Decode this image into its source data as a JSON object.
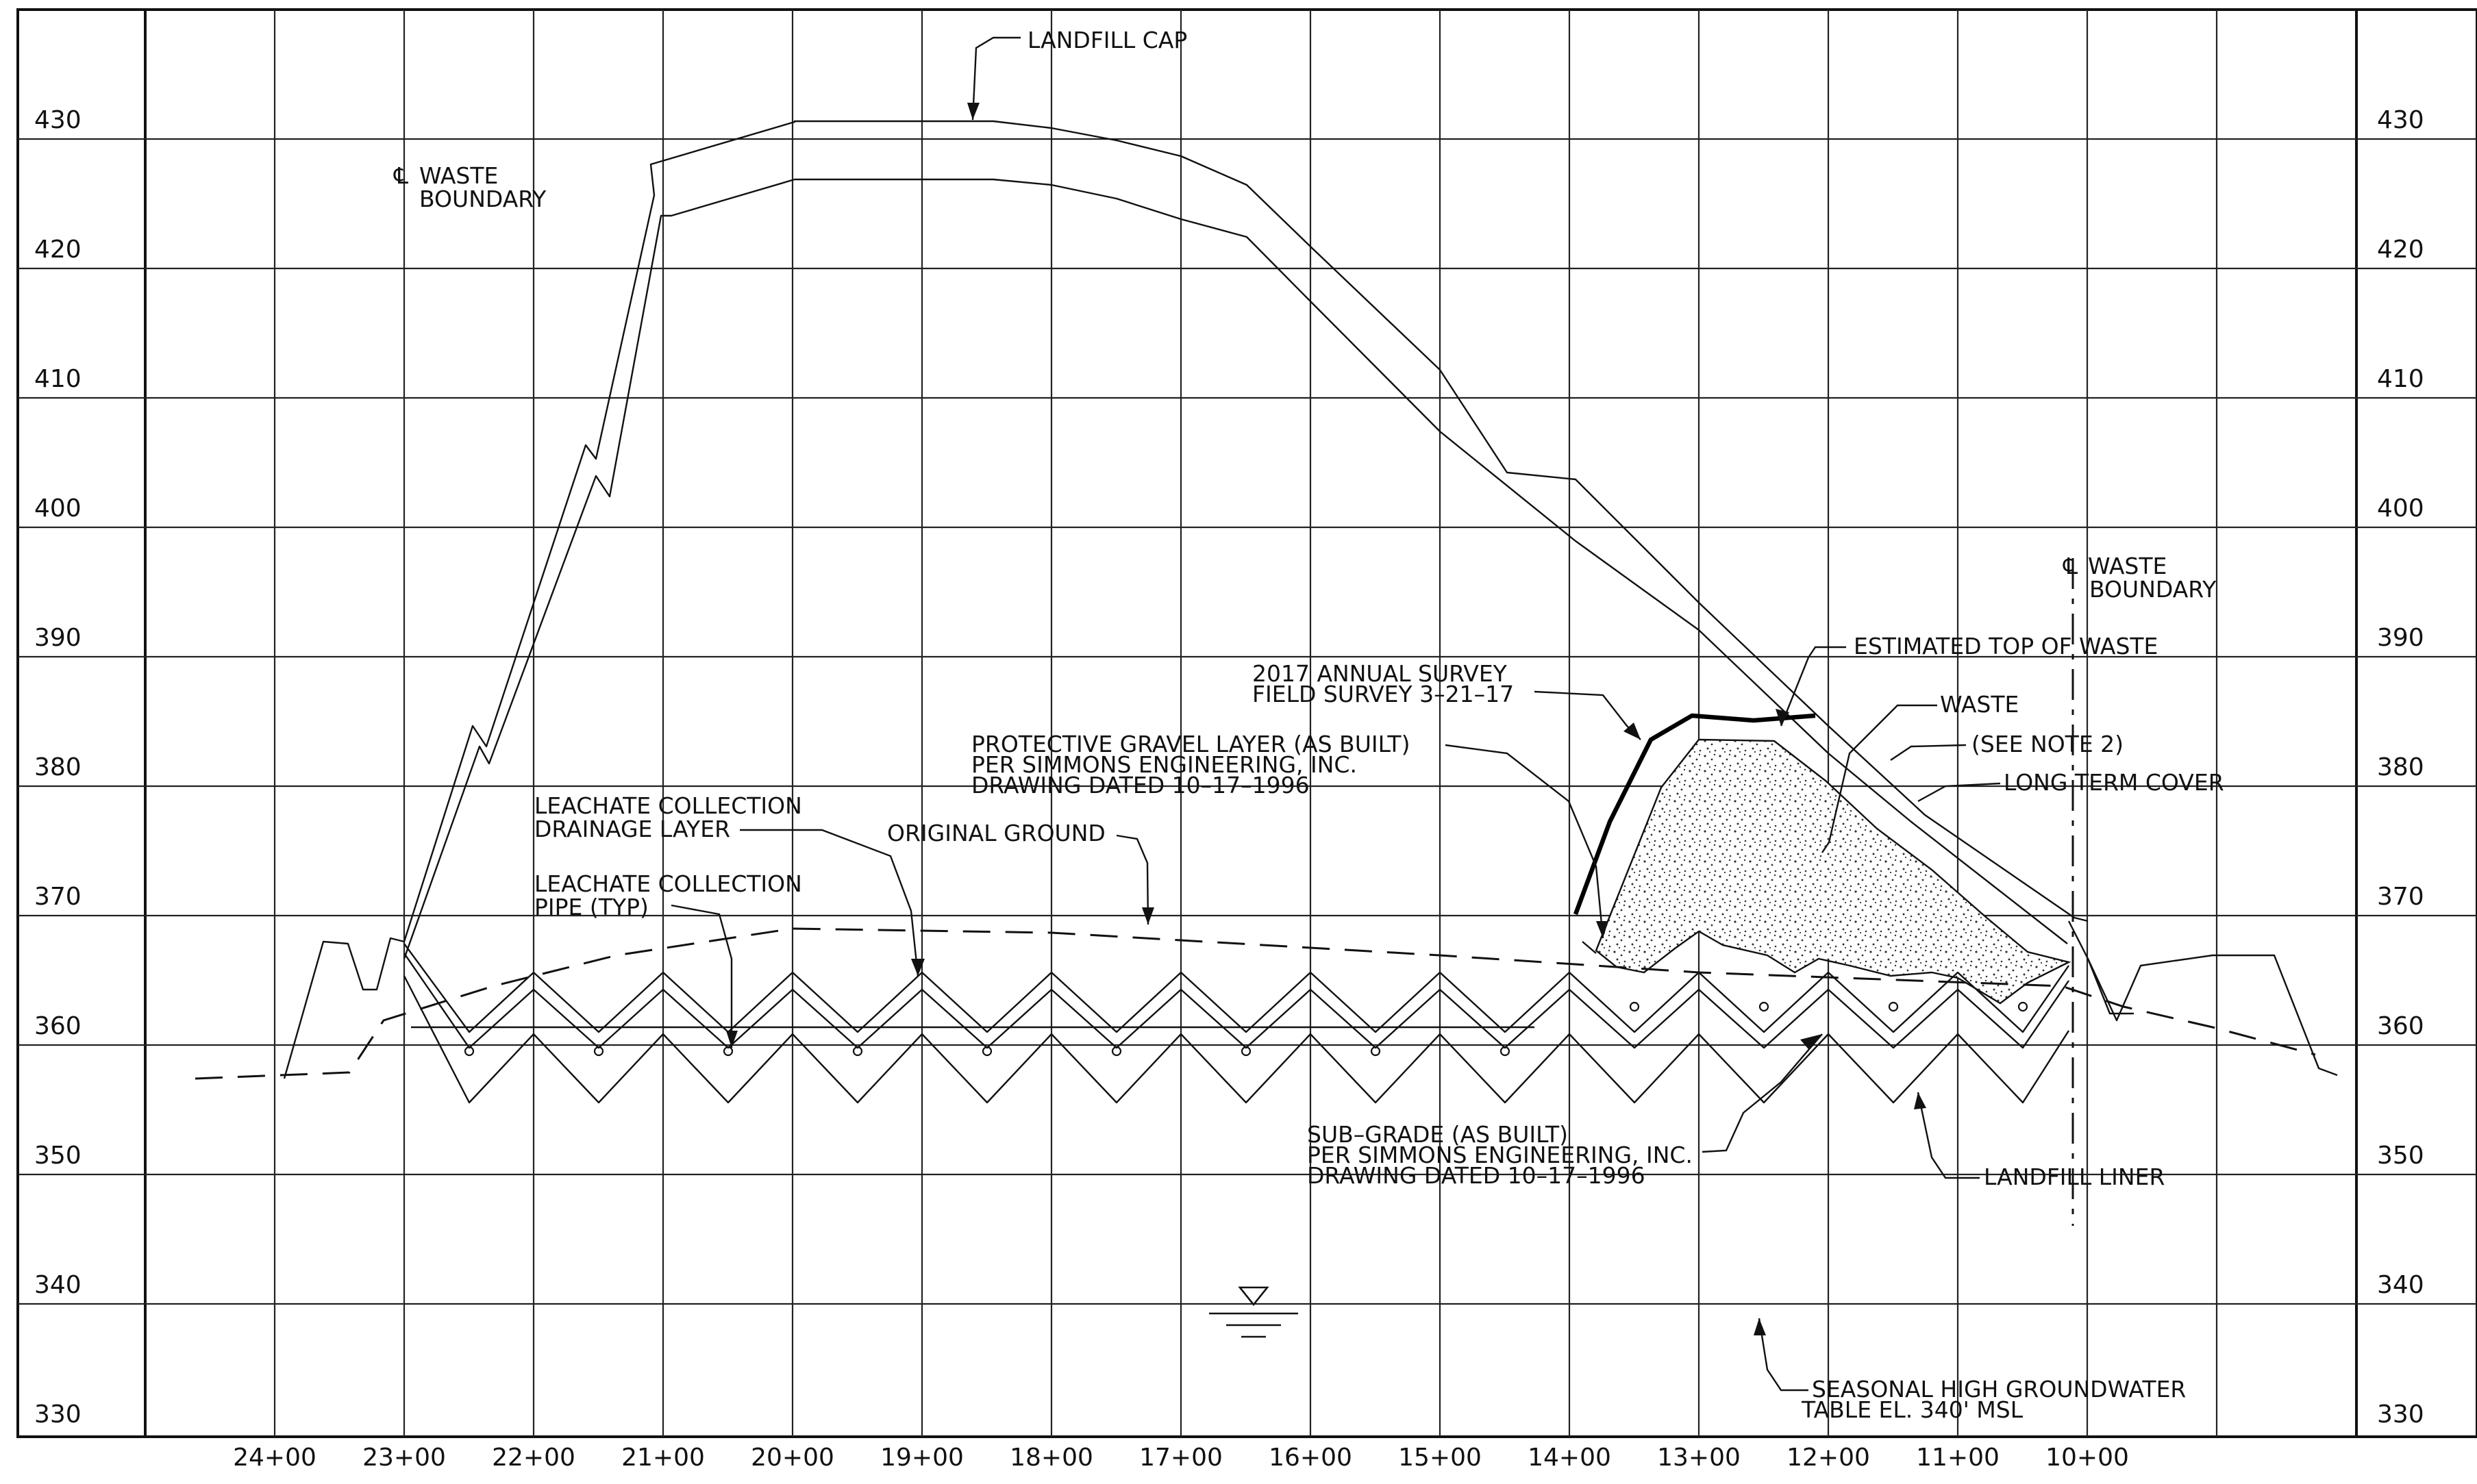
{
  "elevations": [
    "430",
    "420",
    "410",
    "400",
    "390",
    "380",
    "370",
    "360",
    "350",
    "340",
    "330"
  ],
  "stations": [
    "24+00",
    "23+00",
    "22+00",
    "21+00",
    "20+00",
    "19+00",
    "18+00",
    "17+00",
    "16+00",
    "15+00",
    "14+00",
    "13+00",
    "12+00",
    "11+00",
    "10+00"
  ],
  "labels": {
    "landfill_cap": "LANDFILL CAP",
    "cl_symbol": "℄",
    "waste_boundary_1": "WASTE",
    "waste_boundary_2": "BOUNDARY",
    "estimated_top": "ESTIMATED TOP OF WASTE",
    "survey_1": "2017 ANNUAL SURVEY",
    "survey_2": "FIELD SURVEY 3–21–17",
    "waste": "WASTE",
    "see_note": "(SEE NOTE 2)",
    "long_term_cover": "LONG TERM COVER",
    "gravel_1": "PROTECTIVE GRAVEL LAYER (AS BUILT)",
    "gravel_2": "PER SIMMONS ENGINEERING, INC.",
    "gravel_3": "DRAWING DATED 10–17–1996",
    "drainage_1": "LEACHATE COLLECTION",
    "drainage_2": "DRAINAGE LAYER",
    "pipe_1": "LEACHATE COLLECTION",
    "pipe_2": "PIPE (TYP)",
    "original_ground": "ORIGINAL GROUND",
    "subgrade_1": "SUB–GRADE (AS BUILT)",
    "subgrade_2": "PER SIMMONS ENGINEERING, INC.",
    "subgrade_3": "DRAWING DATED 10–17–1996",
    "landfill_liner": "LANDFILL LINER",
    "groundwater_1": "SEASONAL HIGH GROUNDWATER",
    "groundwater_2": "TABLE EL. 340' MSL"
  }
}
